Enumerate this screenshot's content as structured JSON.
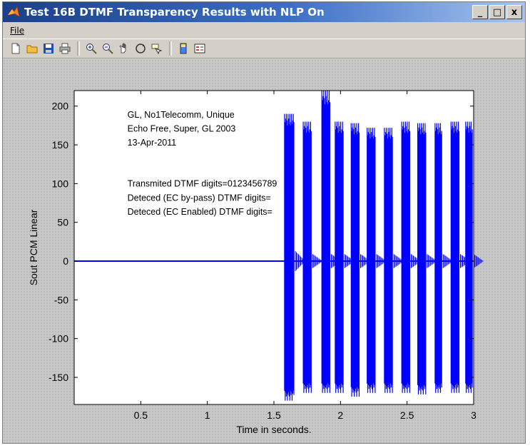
{
  "window": {
    "title": "Test 16B DTMF Transparency Results with NLP On",
    "minimize_label": "_",
    "maximize_label": "□",
    "close_label": "x"
  },
  "menu": {
    "items": [
      {
        "label": "File"
      }
    ]
  },
  "toolbar": {
    "buttons": [
      "new-figure-icon",
      "open-file-icon",
      "save-icon",
      "print-icon",
      "zoom-in-icon",
      "zoom-out-icon",
      "pan-hand-icon",
      "rotate-3d-icon",
      "data-cursor-icon",
      "colorbar-icon",
      "legend-icon"
    ]
  },
  "chart_data": {
    "type": "line",
    "title": "",
    "xlabel": "Time in seconds.",
    "ylabel": "Sout PCM Linear",
    "xlim": [
      0,
      3
    ],
    "ylim": [
      -185,
      220
    ],
    "xticks": [
      0.5,
      1,
      1.5,
      2,
      2.5,
      3
    ],
    "xtick_labels": [
      "0.5",
      "1",
      "1.5",
      "2",
      "2.5",
      "3"
    ],
    "yticks": [
      200,
      150,
      100,
      50,
      0,
      -50,
      -100,
      -150
    ],
    "ytick_labels": [
      "200",
      "150",
      "100",
      "50",
      "0",
      "-50",
      "-100",
      "-150"
    ],
    "series": [
      {
        "color": "#0000ff",
        "baseline": 0,
        "bursts": [
          {
            "start": 1.58,
            "end": 1.65,
            "max": 190,
            "min": -180
          },
          {
            "start": 1.72,
            "end": 1.78,
            "max": 180,
            "min": -170
          },
          {
            "start": 1.86,
            "end": 1.92,
            "max": 220,
            "min": -170
          },
          {
            "start": 1.96,
            "end": 2.02,
            "max": 180,
            "min": -170
          },
          {
            "start": 2.08,
            "end": 2.14,
            "max": 178,
            "min": -175
          },
          {
            "start": 2.2,
            "end": 2.26,
            "max": 172,
            "min": -170
          },
          {
            "start": 2.33,
            "end": 2.39,
            "max": 172,
            "min": -170
          },
          {
            "start": 2.46,
            "end": 2.52,
            "max": 180,
            "min": -170
          },
          {
            "start": 2.58,
            "end": 2.64,
            "max": 178,
            "min": -172
          },
          {
            "start": 2.71,
            "end": 2.76,
            "max": 178,
            "min": -170
          },
          {
            "start": 2.83,
            "end": 2.89,
            "max": 180,
            "min": -170
          },
          {
            "start": 2.94,
            "end": 2.99,
            "max": 180,
            "min": -170
          }
        ]
      }
    ],
    "grid": false,
    "annotations": [
      "GL, No1Telecomm, Unique",
      "Echo Free, Super, GL 2003",
      "13-Apr-2011",
      "Transmited DTMF digits=0123456789",
      "Deteced (EC by-pass) DTMF digits=",
      "Deteced (EC Enabled) DTMF digits="
    ]
  }
}
